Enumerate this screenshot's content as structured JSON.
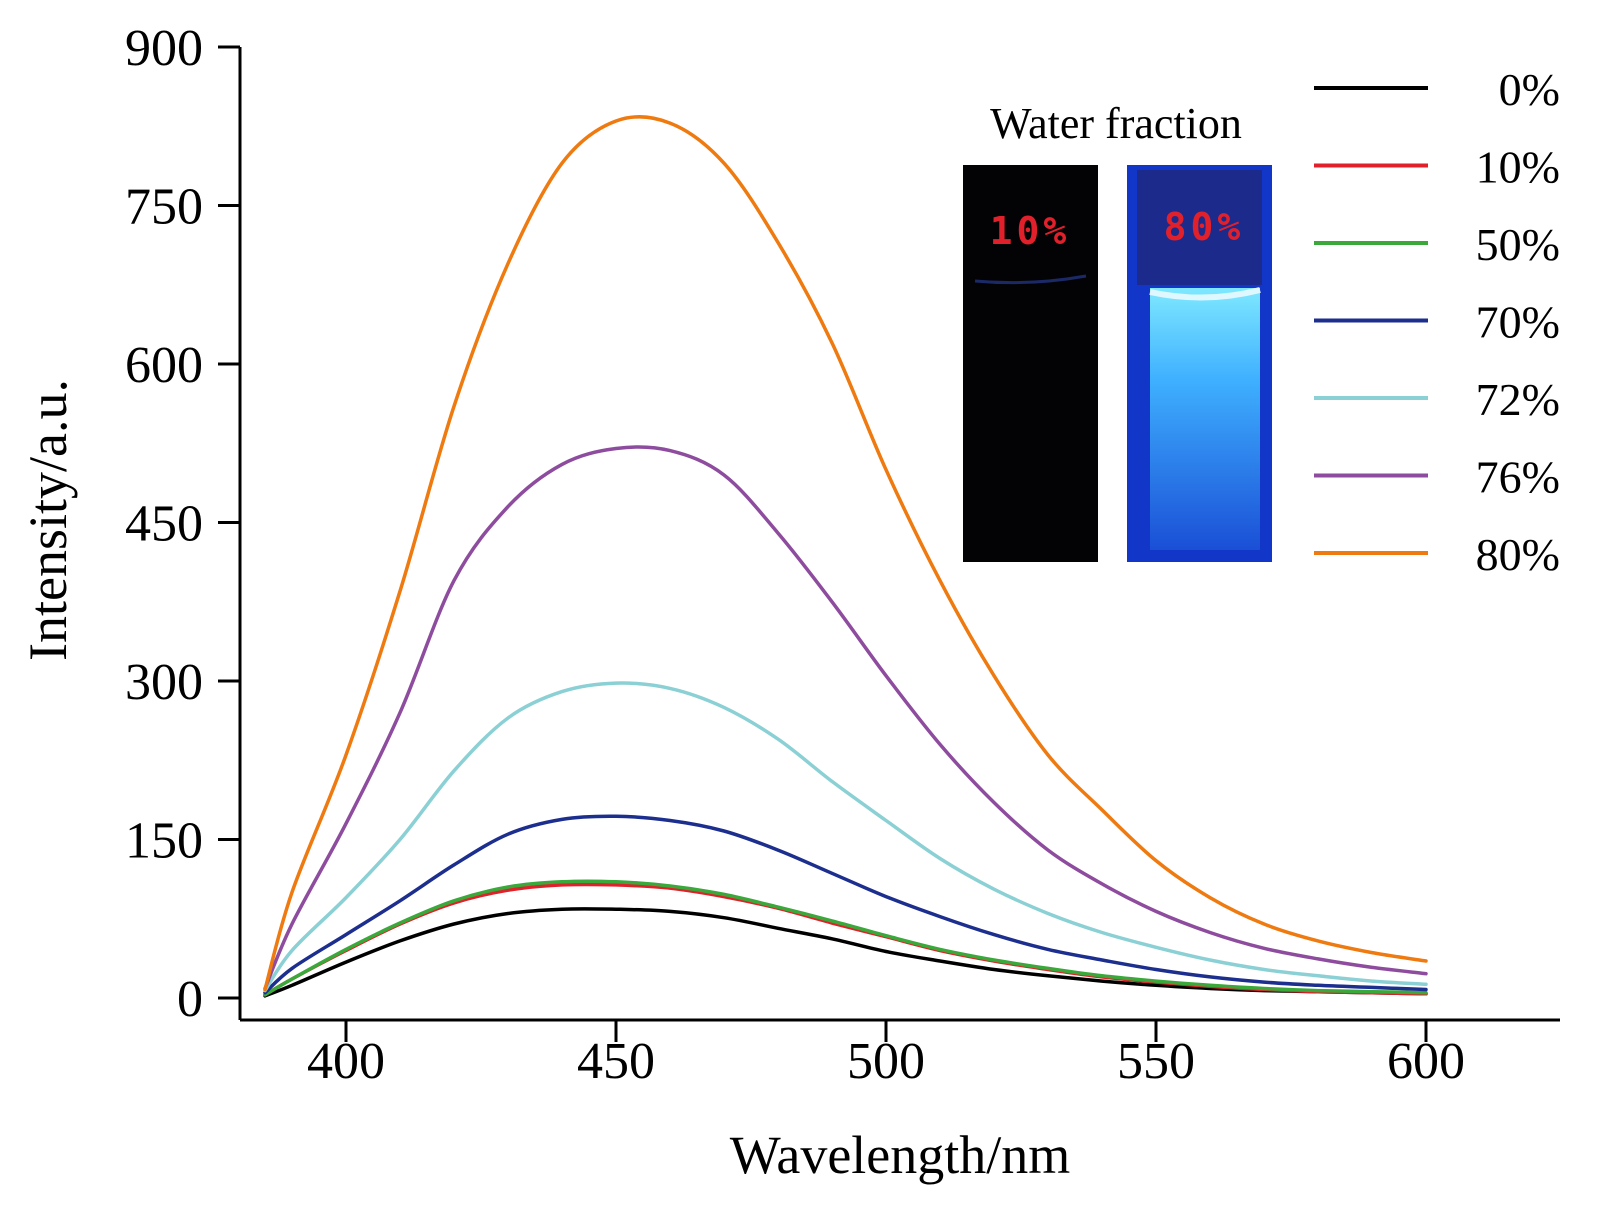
{
  "chart_data": {
    "type": "line",
    "xlabel": "Wavelength/nm",
    "ylabel": "Intensity/a.u.",
    "xlim": [
      380,
      625
    ],
    "ylim": [
      -40,
      900
    ],
    "xticks": [
      400,
      450,
      500,
      550,
      600
    ],
    "yticks": [
      0,
      150,
      300,
      450,
      600,
      750,
      900
    ],
    "x": [
      385,
      390,
      400,
      410,
      420,
      430,
      440,
      450,
      460,
      470,
      480,
      490,
      500,
      510,
      520,
      530,
      540,
      550,
      560,
      570,
      580,
      590,
      600
    ],
    "series": [
      {
        "name": "0%",
        "color": "#000000",
        "values": [
          2,
          12,
          34,
          54,
          70,
          80,
          84,
          84,
          82,
          76,
          66,
          56,
          44,
          35,
          27,
          21,
          16,
          12,
          9,
          7,
          6,
          5,
          4
        ]
      },
      {
        "name": "10%",
        "color": "#e0202a",
        "values": [
          3,
          18,
          45,
          70,
          90,
          102,
          107,
          107,
          104,
          96,
          85,
          71,
          58,
          45,
          35,
          27,
          20,
          15,
          11,
          8,
          6,
          5,
          4
        ]
      },
      {
        "name": "50%",
        "color": "#3aa83a",
        "values": [
          3,
          18,
          46,
          71,
          92,
          105,
          110,
          110,
          106,
          98,
          86,
          73,
          59,
          46,
          36,
          28,
          21,
          16,
          12,
          9,
          7,
          6,
          5
        ]
      },
      {
        "name": "70%",
        "color": "#1c2e8e",
        "values": [
          5,
          28,
          60,
          92,
          126,
          155,
          169,
          172,
          168,
          158,
          140,
          118,
          96,
          77,
          60,
          46,
          36,
          27,
          20,
          15,
          12,
          10,
          8
        ]
      },
      {
        "name": "72%",
        "color": "#8ad0d4",
        "values": [
          7,
          45,
          95,
          150,
          215,
          265,
          290,
          298,
          293,
          275,
          245,
          205,
          168,
          132,
          103,
          80,
          62,
          48,
          36,
          27,
          21,
          16,
          13
        ]
      },
      {
        "name": "76%",
        "color": "#8e4c9e",
        "values": [
          9,
          70,
          165,
          270,
          395,
          465,
          505,
          520,
          518,
          495,
          440,
          375,
          305,
          240,
          185,
          140,
          108,
          82,
          62,
          47,
          37,
          29,
          23
        ]
      },
      {
        "name": "80%",
        "color": "#ee7a10",
        "values": [
          8,
          100,
          230,
          385,
          560,
          695,
          790,
          830,
          828,
          790,
          715,
          620,
          500,
          395,
          305,
          230,
          178,
          130,
          95,
          70,
          54,
          43,
          35
        ]
      }
    ],
    "legend_position": "top-right",
    "inset": {
      "title": "Water fraction",
      "vials": [
        {
          "label": "10%",
          "state": "dark"
        },
        {
          "label": "80%",
          "state": "bright-blue"
        }
      ]
    }
  }
}
